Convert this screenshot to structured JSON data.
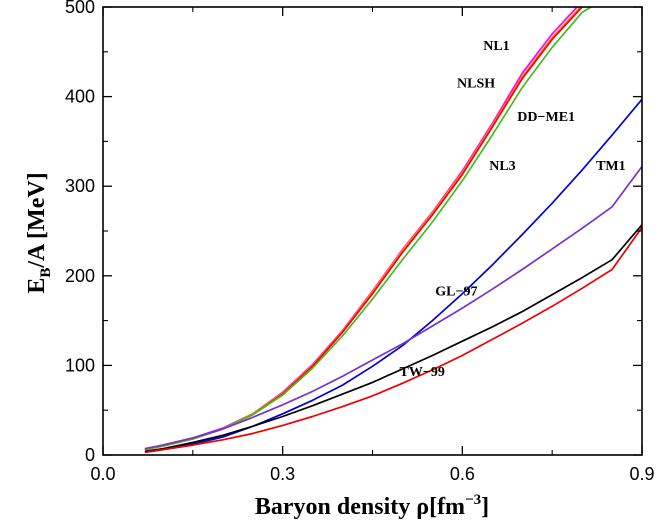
{
  "chart_data": {
    "type": "line",
    "xlabel": {
      "main": "Baryon density  ρ[fm",
      "sup": "−3",
      "end": "]"
    },
    "ylabel": {
      "main": "E",
      "sub": "B",
      "end": "/A [MeV]"
    },
    "xlim": [
      0.0,
      0.9
    ],
    "ylim": [
      0,
      500
    ],
    "xticks": [
      0.0,
      0.3,
      0.6,
      0.9
    ],
    "xtick_labels": [
      "0.0",
      "0.3",
      "0.6",
      "0.9"
    ],
    "yticks": [
      0,
      100,
      200,
      300,
      400,
      500
    ],
    "ytick_labels": [
      "0",
      "100",
      "200",
      "300",
      "400",
      "500"
    ],
    "grid": false,
    "series": [
      {
        "name": "NL1",
        "color": "#ff00ff",
        "x": [
          0.07,
          0.1,
          0.15,
          0.2,
          0.25,
          0.3,
          0.35,
          0.4,
          0.45,
          0.5,
          0.55,
          0.6,
          0.65,
          0.7,
          0.75,
          0.8
        ],
        "y": [
          7,
          11,
          19,
          30,
          46,
          70,
          101,
          139,
          183,
          229,
          271,
          317,
          370,
          426,
          470,
          506
        ]
      },
      {
        "name": "NLSH",
        "color": "#ff8c00",
        "x": [
          0.07,
          0.1,
          0.15,
          0.2,
          0.25,
          0.3,
          0.35,
          0.4,
          0.45,
          0.5,
          0.55,
          0.6,
          0.65,
          0.7,
          0.75,
          0.8
        ],
        "y": [
          6,
          10,
          18,
          29,
          46,
          69,
          100,
          138,
          182,
          228,
          270,
          315,
          368,
          422,
          466,
          502
        ]
      },
      {
        "name": "",
        "color": "#ff0000",
        "x": [
          0.07,
          0.1,
          0.15,
          0.2,
          0.25,
          0.3,
          0.35,
          0.4,
          0.45,
          0.5,
          0.55,
          0.6,
          0.65,
          0.7,
          0.75,
          0.8
        ],
        "y": [
          6,
          10,
          18,
          29,
          45,
          68,
          99,
          137,
          180,
          226,
          268,
          313,
          366,
          420,
          464,
          500
        ]
      },
      {
        "name": "NL3",
        "color": "#44bb22",
        "x": [
          0.07,
          0.1,
          0.15,
          0.2,
          0.25,
          0.3,
          0.35,
          0.4,
          0.45,
          0.5,
          0.55,
          0.6,
          0.65,
          0.7,
          0.75,
          0.8,
          0.82
        ],
        "y": [
          6,
          10,
          18,
          29,
          45,
          67,
          97,
          133,
          174,
          218,
          260,
          306,
          357,
          410,
          455,
          494,
          502
        ]
      },
      {
        "name": "DD−ME1",
        "color": "#0000dd",
        "x": [
          0.07,
          0.1,
          0.15,
          0.2,
          0.25,
          0.3,
          0.35,
          0.4,
          0.45,
          0.5,
          0.55,
          0.6,
          0.65,
          0.7,
          0.75,
          0.8,
          0.85,
          0.9
        ],
        "y": [
          3,
          6,
          12,
          20,
          32,
          46,
          61,
          78,
          99,
          122,
          150,
          180,
          212,
          246,
          281,
          318,
          357,
          397
        ]
      },
      {
        "name": "TM1",
        "color": "#7733cc",
        "x": [
          0.07,
          0.1,
          0.15,
          0.2,
          0.25,
          0.3,
          0.35,
          0.4,
          0.45,
          0.5,
          0.55,
          0.6,
          0.65,
          0.7,
          0.75,
          0.8,
          0.85,
          0.9
        ],
        "y": [
          7,
          11,
          19,
          29,
          42,
          56,
          71,
          88,
          106,
          124,
          144,
          164,
          185,
          207,
          230,
          253,
          277,
          322
        ]
      },
      {
        "name": "GL−97",
        "color": "#000000",
        "x": [
          0.07,
          0.1,
          0.15,
          0.2,
          0.25,
          0.3,
          0.35,
          0.4,
          0.45,
          0.5,
          0.55,
          0.6,
          0.65,
          0.7,
          0.75,
          0.8,
          0.85,
          0.9
        ],
        "y": [
          4,
          7,
          14,
          22,
          32,
          43,
          55,
          68,
          81,
          96,
          111,
          127,
          143,
          160,
          179,
          198,
          218,
          257
        ]
      },
      {
        "name": "TW−99",
        "color": "#ee0000",
        "x": [
          0.07,
          0.1,
          0.15,
          0.2,
          0.25,
          0.3,
          0.35,
          0.4,
          0.45,
          0.5,
          0.55,
          0.6,
          0.65,
          0.7,
          0.75,
          0.8,
          0.85,
          0.9
        ],
        "y": [
          3,
          6,
          11,
          17,
          24,
          33,
          43,
          54,
          66,
          80,
          95,
          111,
          129,
          147,
          166,
          186,
          207,
          254
        ]
      }
    ],
    "labels": [
      {
        "text": "NL1",
        "x": 0.657,
        "y": 452
      },
      {
        "text": "NLSH",
        "x": 0.623,
        "y": 410
      },
      {
        "text": "DD−ME1",
        "x": 0.74,
        "y": 373
      },
      {
        "text": "NL3",
        "x": 0.667,
        "y": 318
      },
      {
        "text": "TM1",
        "x": 0.848,
        "y": 318
      },
      {
        "text": "GL−97",
        "x": 0.59,
        "y": 178
      },
      {
        "text": "TW−99",
        "x": 0.533,
        "y": 88
      }
    ]
  }
}
